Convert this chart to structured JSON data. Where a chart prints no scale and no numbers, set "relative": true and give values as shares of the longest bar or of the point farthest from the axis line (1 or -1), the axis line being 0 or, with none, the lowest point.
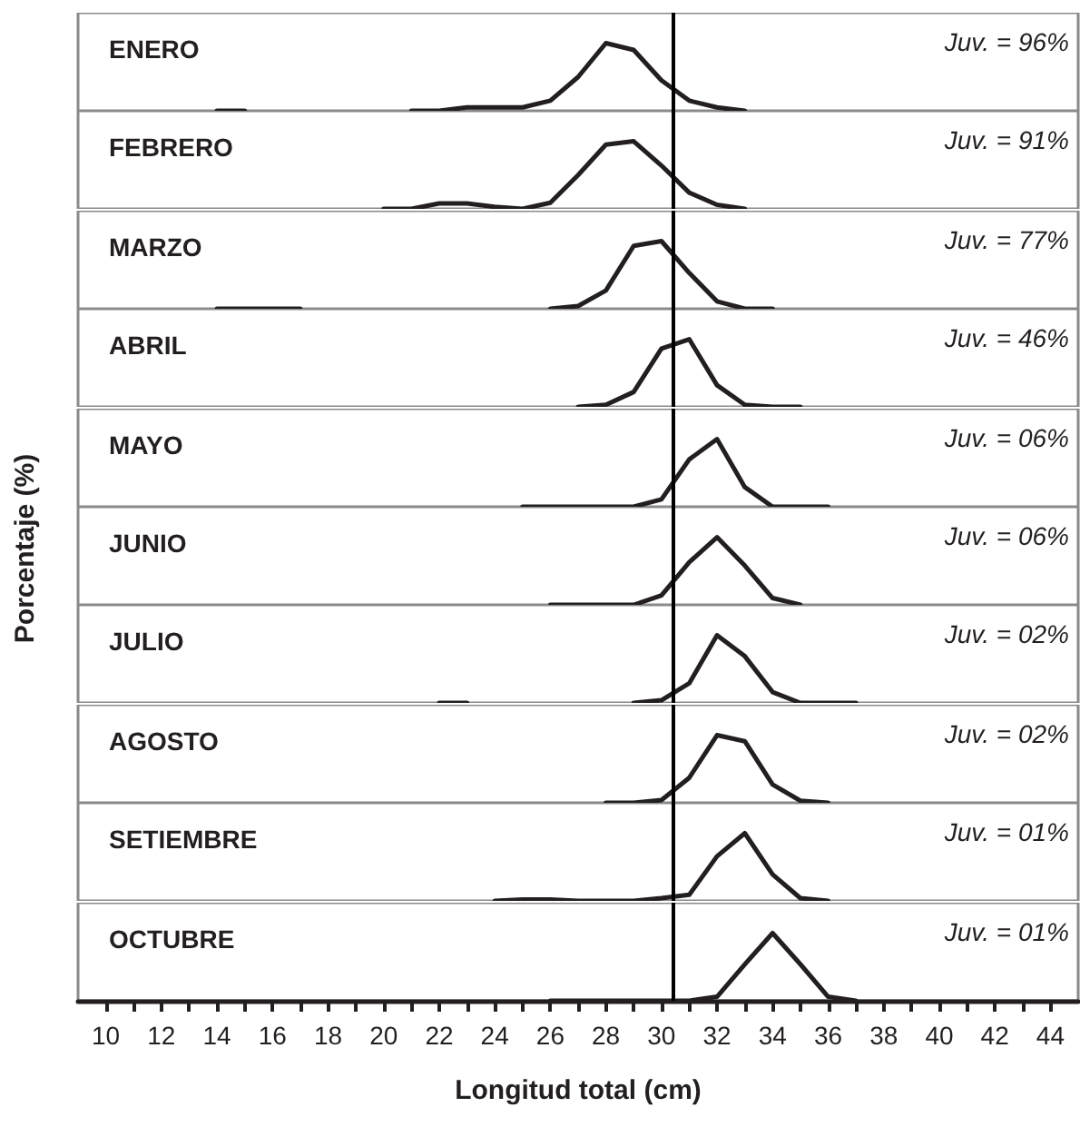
{
  "chart_data": [
    {
      "type": "line",
      "title": "ENERO",
      "annotations": [
        "Juv. = 96%"
      ],
      "relative": true,
      "xlim": [
        9,
        45
      ],
      "tick_labels": false,
      "ref_lines": [
        {
          "axis": "x",
          "value": 30.4,
          "color": "#000000"
        }
      ],
      "series": [
        {
          "color": "#231f20",
          "x": [
            14,
            15
          ],
          "values": [
            0,
            0
          ]
        },
        {
          "color": "#231f20",
          "x": [
            21,
            22,
            23,
            24,
            25,
            26,
            27,
            28,
            29,
            30,
            31,
            32,
            33
          ],
          "values": [
            0,
            0,
            0.05,
            0.05,
            0.05,
            0.15,
            0.5,
            1,
            0.9,
            0.45,
            0.15,
            0.05,
            0
          ]
        }
      ]
    },
    {
      "type": "line",
      "title": "FEBRERO",
      "annotations": [
        "Juv. = 91%"
      ],
      "relative": true,
      "xlim": [
        9,
        45
      ],
      "tick_labels": false,
      "ref_lines": [
        {
          "axis": "x",
          "value": 30.4,
          "color": "#000000"
        }
      ],
      "series": [
        {
          "color": "#231f20",
          "x": [
            20,
            21,
            22,
            23,
            24,
            25,
            26,
            27,
            28,
            29,
            30,
            31,
            32,
            33
          ],
          "values": [
            0,
            0,
            0.08,
            0.08,
            0.03,
            0,
            0.09,
            0.5,
            0.95,
            1,
            0.64,
            0.24,
            0.06,
            0
          ]
        }
      ]
    },
    {
      "type": "line",
      "title": "MARZO",
      "annotations": [
        "Juv. = 77%"
      ],
      "relative": true,
      "xlim": [
        9,
        45
      ],
      "tick_labels": false,
      "ref_lines": [
        {
          "axis": "x",
          "value": 30.4,
          "color": "#000000"
        }
      ],
      "series": [
        {
          "color": "#231f20",
          "x": [
            14,
            15,
            16,
            17
          ],
          "values": [
            0,
            0,
            0,
            0
          ]
        },
        {
          "color": "#231f20",
          "x": [
            26,
            27,
            28,
            29,
            30,
            31,
            32,
            33,
            34
          ],
          "values": [
            0,
            0.04,
            0.27,
            0.93,
            1,
            0.53,
            0.11,
            0,
            0
          ]
        }
      ]
    },
    {
      "type": "line",
      "title": "ABRIL",
      "annotations": [
        "Juv. = 46%"
      ],
      "relative": true,
      "xlim": [
        9,
        45
      ],
      "tick_labels": false,
      "ref_lines": [
        {
          "axis": "x",
          "value": 30.4,
          "color": "#000000"
        }
      ],
      "series": [
        {
          "color": "#231f20",
          "x": [
            27,
            28,
            29,
            30,
            31,
            32,
            33,
            34,
            35
          ],
          "values": [
            0,
            0.03,
            0.22,
            0.86,
            1,
            0.32,
            0.03,
            0,
            0
          ]
        }
      ]
    },
    {
      "type": "line",
      "title": "MAYO",
      "annotations": [
        "Juv. = 06%"
      ],
      "relative": true,
      "xlim": [
        9,
        45
      ],
      "tick_labels": false,
      "ref_lines": [
        {
          "axis": "x",
          "value": 30.4,
          "color": "#000000"
        }
      ],
      "series": [
        {
          "color": "#231f20",
          "x": [
            25,
            26,
            27,
            28,
            29,
            30,
            31,
            32,
            33,
            34,
            35,
            36
          ],
          "values": [
            0,
            0,
            0,
            0,
            0,
            0.11,
            0.7,
            1,
            0.29,
            0,
            0,
            0
          ]
        }
      ]
    },
    {
      "type": "line",
      "title": "JUNIO",
      "annotations": [
        "Juv. = 06%"
      ],
      "ylabel": "Porcentaje (%)",
      "relative": true,
      "xlim": [
        9,
        45
      ],
      "tick_labels": false,
      "ref_lines": [
        {
          "axis": "x",
          "value": 30.4,
          "color": "#000000"
        }
      ],
      "series": [
        {
          "color": "#231f20",
          "x": [
            26,
            27,
            28,
            29,
            30,
            31,
            32,
            33,
            34,
            35
          ],
          "values": [
            0,
            0,
            0,
            0,
            0.14,
            0.63,
            1,
            0.58,
            0.1,
            0
          ]
        }
      ]
    },
    {
      "type": "line",
      "title": "JULIO",
      "annotations": [
        "Juv. = 02%"
      ],
      "relative": true,
      "xlim": [
        9,
        45
      ],
      "tick_labels": false,
      "ref_lines": [
        {
          "axis": "x",
          "value": 30.4,
          "color": "#000000"
        }
      ],
      "series": [
        {
          "color": "#231f20",
          "x": [
            22,
            23
          ],
          "values": [
            0,
            0
          ]
        },
        {
          "color": "#231f20",
          "x": [
            29,
            30,
            31,
            32,
            33,
            34,
            35,
            36,
            37
          ],
          "values": [
            0,
            0.04,
            0.29,
            1,
            0.69,
            0.16,
            0,
            0,
            0
          ]
        }
      ]
    },
    {
      "type": "line",
      "title": "AGOSTO",
      "annotations": [
        "Juv. = 02%"
      ],
      "relative": true,
      "xlim": [
        9,
        45
      ],
      "tick_labels": false,
      "ref_lines": [
        {
          "axis": "x",
          "value": 30.4,
          "color": "#000000"
        }
      ],
      "series": [
        {
          "color": "#231f20",
          "x": [
            28,
            29,
            30,
            31,
            32,
            33,
            34,
            35,
            36
          ],
          "values": [
            0,
            0,
            0.04,
            0.37,
            1,
            0.91,
            0.27,
            0.03,
            0
          ]
        }
      ]
    },
    {
      "type": "line",
      "title": "SETIEMBRE",
      "annotations": [
        "Juv. = 01%"
      ],
      "relative": true,
      "xlim": [
        9,
        45
      ],
      "tick_labels": false,
      "ref_lines": [
        {
          "axis": "x",
          "value": 30.4,
          "color": "#000000"
        }
      ],
      "series": [
        {
          "color": "#231f20",
          "x": [
            24,
            25,
            26,
            27,
            28,
            29,
            30,
            31,
            32,
            33,
            34,
            35,
            36
          ],
          "values": [
            0,
            0.02,
            0.02,
            0,
            0,
            0,
            0.04,
            0.09,
            0.66,
            1,
            0.39,
            0.04,
            0
          ]
        }
      ]
    },
    {
      "type": "line",
      "title": "OCTUBRE",
      "annotations": [
        "Juv. = 01%"
      ],
      "xlabel": "Longitud total (cm)",
      "relative": true,
      "xlim": [
        9,
        45
      ],
      "tick_labels": "x",
      "ref_lines": [
        {
          "axis": "x",
          "value": 30.4,
          "color": "#000000"
        }
      ],
      "xticks": [
        10,
        {
          "value": 11,
          "label": null
        },
        12,
        {
          "value": 13,
          "label": null
        },
        14,
        {
          "value": 15,
          "label": null
        },
        16,
        {
          "value": 17,
          "label": null
        },
        18,
        {
          "value": 19,
          "label": null
        },
        20,
        {
          "value": 21,
          "label": null
        },
        22,
        {
          "value": 23,
          "label": null
        },
        24,
        {
          "value": 25,
          "label": null
        },
        26,
        {
          "value": 27,
          "label": null
        },
        28,
        {
          "value": 29,
          "label": null
        },
        30,
        {
          "value": 31,
          "label": null
        },
        32,
        {
          "value": 33,
          "label": null
        },
        34,
        {
          "value": 35,
          "label": null
        },
        36,
        {
          "value": 37,
          "label": null
        },
        38,
        {
          "value": 39,
          "label": null
        },
        40,
        {
          "value": 41,
          "label": null
        },
        42,
        {
          "value": 43,
          "label": null
        },
        44
      ],
      "series": [
        {
          "color": "#231f20",
          "x": [
            26,
            27,
            28,
            29,
            30,
            31,
            32,
            33,
            34,
            35,
            36,
            37
          ],
          "values": [
            0,
            0,
            0,
            0,
            0,
            0,
            0.06,
            0.54,
            1,
            0.54,
            0.06,
            0
          ]
        }
      ]
    }
  ]
}
